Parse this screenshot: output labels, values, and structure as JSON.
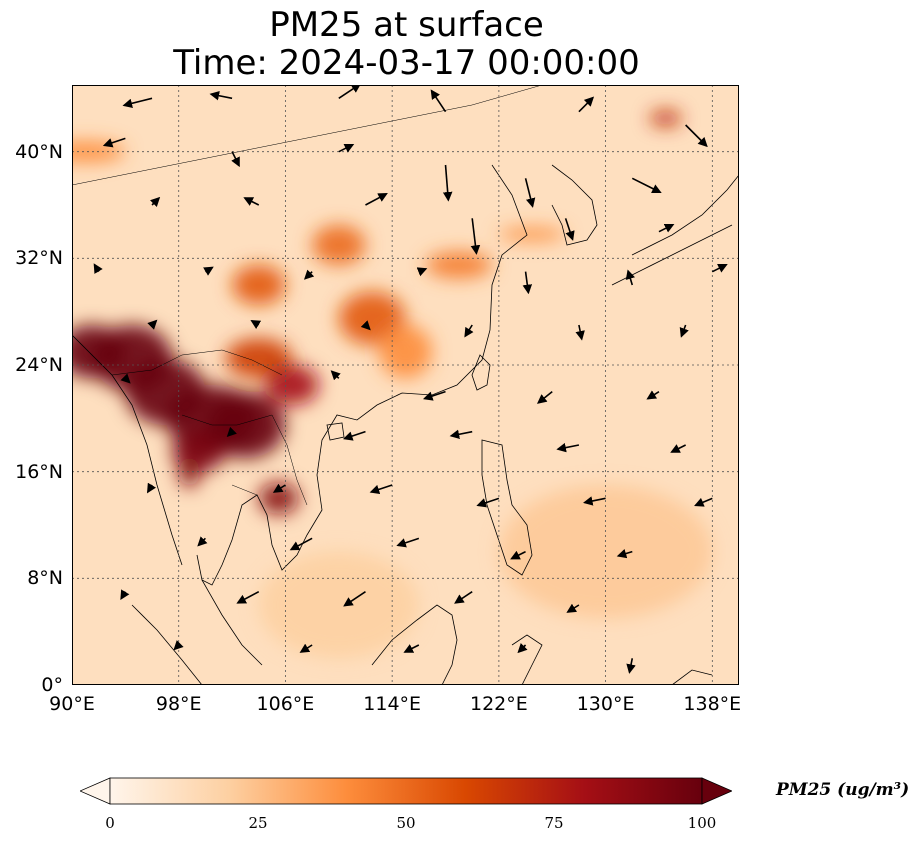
{
  "title": {
    "line1": "PM25 at surface",
    "line2": "Time: 2024-03-17 00:00:00"
  },
  "map": {
    "lon_range": [
      90,
      140
    ],
    "lat_range": [
      0,
      45
    ],
    "lat_ticks": [
      {
        "value": 0,
        "label": "0°"
      },
      {
        "value": 8,
        "label": "8°N"
      },
      {
        "value": 16,
        "label": "16°N"
      },
      {
        "value": 24,
        "label": "24°N"
      },
      {
        "value": 32,
        "label": "32°N"
      },
      {
        "value": 40,
        "label": "40°N"
      }
    ],
    "lon_ticks": [
      {
        "value": 90,
        "label": "90°E"
      },
      {
        "value": 98,
        "label": "98°E"
      },
      {
        "value": 106,
        "label": "106°E"
      },
      {
        "value": 114,
        "label": "114°E"
      },
      {
        "value": 122,
        "label": "122°E"
      },
      {
        "value": 130,
        "label": "130°E"
      },
      {
        "value": 138,
        "label": "138°E"
      }
    ],
    "gridlines": "dotted",
    "background_value": 12,
    "pollution_blobs": [
      {
        "lon": 91.5,
        "lat": 25.0,
        "rx": 2.5,
        "ry": 2.0,
        "value": 100
      },
      {
        "lon": 94.5,
        "lat": 24.5,
        "rx": 3.0,
        "ry": 2.5,
        "value": 100
      },
      {
        "lon": 97.0,
        "lat": 22.0,
        "rx": 3.0,
        "ry": 2.5,
        "value": 100
      },
      {
        "lon": 100.5,
        "lat": 20.0,
        "rx": 3.5,
        "ry": 2.5,
        "value": 100
      },
      {
        "lon": 103.0,
        "lat": 19.5,
        "rx": 3.0,
        "ry": 2.5,
        "value": 100
      },
      {
        "lon": 99.5,
        "lat": 17.5,
        "rx": 2.0,
        "ry": 1.5,
        "value": 95
      },
      {
        "lon": 105.5,
        "lat": 14.0,
        "rx": 1.5,
        "ry": 1.2,
        "value": 90
      },
      {
        "lon": 98.8,
        "lat": 16.0,
        "rx": 0.8,
        "ry": 1.2,
        "value": 90
      },
      {
        "lon": 104.0,
        "lat": 24.5,
        "rx": 2.5,
        "ry": 1.5,
        "value": 65
      },
      {
        "lon": 106.5,
        "lat": 22.5,
        "rx": 2.0,
        "ry": 1.5,
        "value": 80
      },
      {
        "lon": 104.0,
        "lat": 30.0,
        "rx": 2.0,
        "ry": 1.5,
        "value": 55
      },
      {
        "lon": 110.0,
        "lat": 33.0,
        "rx": 2.0,
        "ry": 1.5,
        "value": 50
      },
      {
        "lon": 112.5,
        "lat": 27.5,
        "rx": 2.5,
        "ry": 2.0,
        "value": 55
      },
      {
        "lon": 119.0,
        "lat": 31.5,
        "rx": 2.5,
        "ry": 1.0,
        "value": 45
      },
      {
        "lon": 115.0,
        "lat": 25.0,
        "rx": 2.0,
        "ry": 2.0,
        "value": 40
      },
      {
        "lon": 91.0,
        "lat": 40.0,
        "rx": 3.0,
        "ry": 0.8,
        "value": 40
      },
      {
        "lon": 134.5,
        "lat": 42.5,
        "rx": 1.2,
        "ry": 0.6,
        "value": 70
      },
      {
        "lon": 124.5,
        "lat": 33.8,
        "rx": 2.5,
        "ry": 0.5,
        "value": 40
      },
      {
        "lon": 130.0,
        "lat": 10.0,
        "rx": 8.0,
        "ry": 5.0,
        "value": 22
      },
      {
        "lon": 110.0,
        "lat": 6.0,
        "rx": 6.0,
        "ry": 4.0,
        "value": 20
      }
    ],
    "wind_vectors": [
      {
        "lon": 96,
        "lat": 44,
        "u": -2,
        "v": -0.5
      },
      {
        "lon": 102,
        "lat": 44,
        "u": -1.5,
        "v": 0.3
      },
      {
        "lon": 110,
        "lat": 44,
        "u": 1.5,
        "v": 1
      },
      {
        "lon": 118,
        "lat": 43,
        "u": -1,
        "v": 1.5
      },
      {
        "lon": 128,
        "lat": 43,
        "u": 1,
        "v": 1
      },
      {
        "lon": 136,
        "lat": 42,
        "u": 1.5,
        "v": -1.5
      },
      {
        "lon": 94,
        "lat": 41,
        "u": -1.5,
        "v": -0.5
      },
      {
        "lon": 102,
        "lat": 40,
        "u": 0.5,
        "v": -1
      },
      {
        "lon": 110,
        "lat": 40,
        "u": 1,
        "v": 0.5
      },
      {
        "lon": 118,
        "lat": 39,
        "u": 0.2,
        "v": -2.5
      },
      {
        "lon": 124,
        "lat": 38,
        "u": 0.5,
        "v": -2
      },
      {
        "lon": 132,
        "lat": 38,
        "u": 2,
        "v": -1
      },
      {
        "lon": 96,
        "lat": 36,
        "u": 0.5,
        "v": 0.5
      },
      {
        "lon": 104,
        "lat": 36,
        "u": -1,
        "v": 0.5
      },
      {
        "lon": 112,
        "lat": 36,
        "u": 1.5,
        "v": 0.8
      },
      {
        "lon": 120,
        "lat": 35,
        "u": 0.3,
        "v": -2.5
      },
      {
        "lon": 127,
        "lat": 35,
        "u": 0.5,
        "v": -1.5
      },
      {
        "lon": 134,
        "lat": 34,
        "u": 1,
        "v": 0.5
      },
      {
        "lon": 92,
        "lat": 31,
        "u": -0.3,
        "v": 0.5
      },
      {
        "lon": 100,
        "lat": 31,
        "u": 0.5,
        "v": 0.3
      },
      {
        "lon": 108,
        "lat": 31,
        "u": -0.5,
        "v": -0.5
      },
      {
        "lon": 116,
        "lat": 31,
        "u": 0.5,
        "v": 0.2
      },
      {
        "lon": 124,
        "lat": 31,
        "u": 0.2,
        "v": -1.5
      },
      {
        "lon": 132,
        "lat": 30,
        "u": -0.3,
        "v": 1
      },
      {
        "lon": 138,
        "lat": 31,
        "u": 1,
        "v": 0.5
      },
      {
        "lon": 96,
        "lat": 27,
        "u": 0.3,
        "v": 0.3
      },
      {
        "lon": 104,
        "lat": 27,
        "u": -0.5,
        "v": 0.3
      },
      {
        "lon": 112,
        "lat": 27,
        "u": 0.3,
        "v": -0.3
      },
      {
        "lon": 120,
        "lat": 27,
        "u": -0.5,
        "v": -0.8
      },
      {
        "lon": 128,
        "lat": 27,
        "u": 0.2,
        "v": -1
      },
      {
        "lon": 136,
        "lat": 27,
        "u": -0.3,
        "v": -0.8
      },
      {
        "lon": 94,
        "lat": 23,
        "u": 0.3,
        "v": -0.3
      },
      {
        "lon": 110,
        "lat": 23,
        "u": -0.5,
        "v": 0.5
      },
      {
        "lon": 118,
        "lat": 22,
        "u": -1.5,
        "v": -0.5
      },
      {
        "lon": 126,
        "lat": 22,
        "u": -1,
        "v": -0.8
      },
      {
        "lon": 134,
        "lat": 22,
        "u": -0.8,
        "v": -0.5
      },
      {
        "lon": 102,
        "lat": 19,
        "u": -0.3,
        "v": -0.3
      },
      {
        "lon": 112,
        "lat": 19,
        "u": -1.5,
        "v": -0.5
      },
      {
        "lon": 120,
        "lat": 19,
        "u": -1.5,
        "v": -0.3
      },
      {
        "lon": 128,
        "lat": 18,
        "u": -1.5,
        "v": -0.3
      },
      {
        "lon": 136,
        "lat": 18,
        "u": -1,
        "v": -0.5
      },
      {
        "lon": 96,
        "lat": 15,
        "u": -0.3,
        "v": -0.5
      },
      {
        "lon": 106,
        "lat": 15,
        "u": -0.8,
        "v": -0.5
      },
      {
        "lon": 114,
        "lat": 15,
        "u": -1.5,
        "v": -0.5
      },
      {
        "lon": 122,
        "lat": 14,
        "u": -1.5,
        "v": -0.5
      },
      {
        "lon": 130,
        "lat": 14,
        "u": -1.5,
        "v": -0.3
      },
      {
        "lon": 138,
        "lat": 14,
        "u": -1.2,
        "v": -0.5
      },
      {
        "lon": 100,
        "lat": 11,
        "u": -0.5,
        "v": -0.5
      },
      {
        "lon": 108,
        "lat": 11,
        "u": -1.5,
        "v": -0.8
      },
      {
        "lon": 116,
        "lat": 11,
        "u": -1.5,
        "v": -0.5
      },
      {
        "lon": 124,
        "lat": 10,
        "u": -1,
        "v": -0.5
      },
      {
        "lon": 132,
        "lat": 10,
        "u": -1,
        "v": -0.3
      },
      {
        "lon": 94,
        "lat": 7,
        "u": -0.3,
        "v": -0.5
      },
      {
        "lon": 104,
        "lat": 7,
        "u": -1.5,
        "v": -0.8
      },
      {
        "lon": 112,
        "lat": 7,
        "u": -1.5,
        "v": -1
      },
      {
        "lon": 120,
        "lat": 7,
        "u": -1.2,
        "v": -0.8
      },
      {
        "lon": 128,
        "lat": 6,
        "u": -0.8,
        "v": -0.5
      },
      {
        "lon": 98,
        "lat": 3,
        "u": -0.3,
        "v": -0.3
      },
      {
        "lon": 108,
        "lat": 3,
        "u": -0.8,
        "v": -0.5
      },
      {
        "lon": 116,
        "lat": 3,
        "u": -1,
        "v": -0.5
      },
      {
        "lon": 124,
        "lat": 3,
        "u": -0.5,
        "v": -0.5
      },
      {
        "lon": 132,
        "lat": 2,
        "u": -0.2,
        "v": -1
      }
    ]
  },
  "colorbar": {
    "label": "PM25 (ug/m³)",
    "min": 0,
    "max": 100,
    "ticks": [
      {
        "value": 0,
        "label": "0"
      },
      {
        "value": 25,
        "label": "25"
      },
      {
        "value": 50,
        "label": "50"
      },
      {
        "value": 75,
        "label": "75"
      },
      {
        "value": 100,
        "label": "100"
      }
    ],
    "colors": [
      "#fff5eb",
      "#fdd0a2",
      "#fd8d3c",
      "#d94801",
      "#a50f15",
      "#67000d"
    ]
  }
}
